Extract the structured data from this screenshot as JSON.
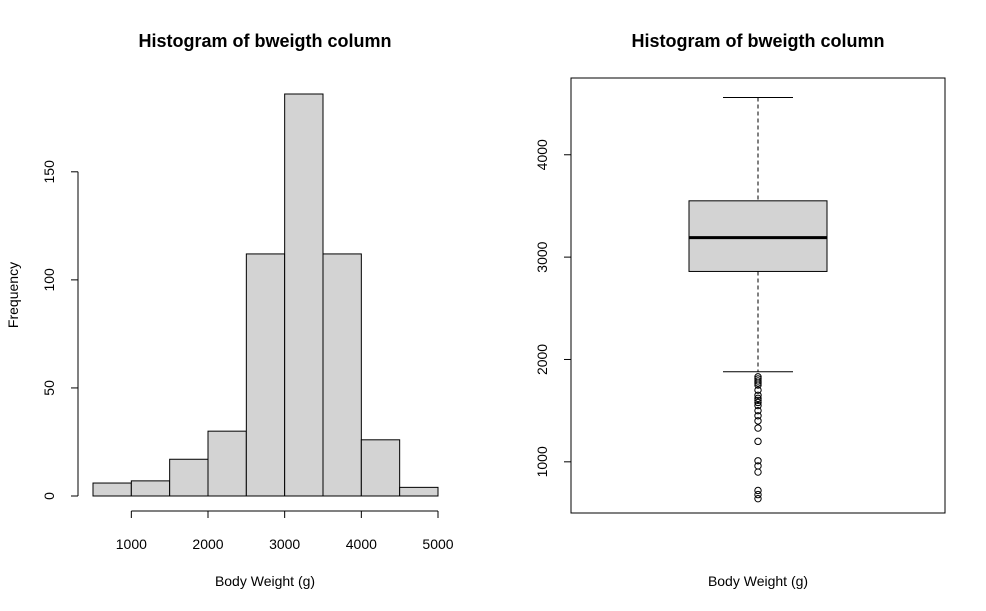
{
  "chart_data": [
    {
      "type": "bar",
      "title": "Histogram of bweigth column",
      "xlabel": "Body Weight (g)",
      "ylabel": "Frequency",
      "bin_edges": [
        500,
        1000,
        1500,
        2000,
        2500,
        3000,
        3500,
        4000,
        4500,
        5000
      ],
      "values": [
        6,
        7,
        17,
        30,
        112,
        186,
        112,
        26,
        4
      ],
      "x_ticks": [
        1000,
        2000,
        3000,
        4000,
        5000
      ],
      "y_ticks": [
        0,
        50,
        100,
        150
      ],
      "xlim": [
        500,
        5000
      ],
      "ylim": [
        0,
        186
      ],
      "grid": false
    },
    {
      "type": "box",
      "title": "Histogram of bweigth column",
      "xlabel": "Body Weight (g)",
      "ylabel": "",
      "whisker_low": 1880,
      "q1": 2860,
      "median": 3190,
      "q3": 3550,
      "whisker_high": 4560,
      "outliers": [
        1830,
        1810,
        1790,
        1770,
        1750,
        1700,
        1650,
        1620,
        1600,
        1580,
        1550,
        1500,
        1450,
        1400,
        1330,
        1200,
        1010,
        960,
        900,
        720,
        680,
        640
      ],
      "y_ticks": [
        1000,
        2000,
        3000,
        4000
      ],
      "ylim": [
        500,
        4750
      ],
      "grid": false
    }
  ]
}
